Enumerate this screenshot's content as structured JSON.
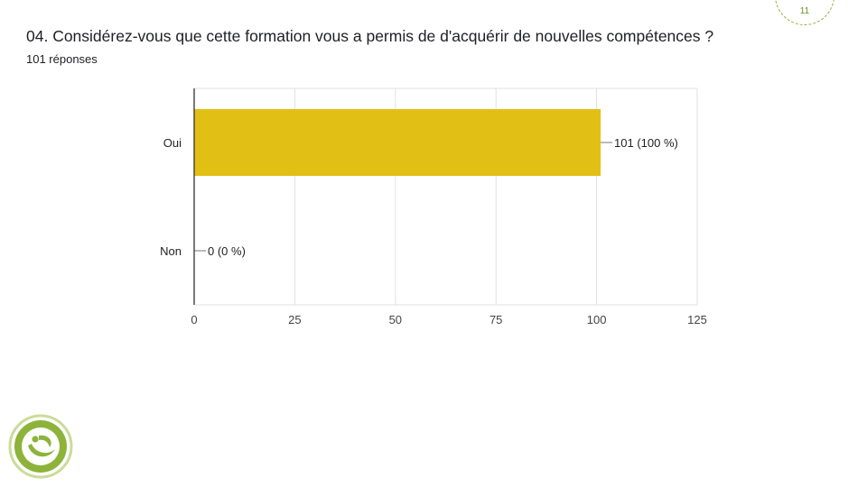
{
  "slide": {
    "question": "04. Considérez-vous que cette formation vous a permis de  d'acquérir de nouvelles compétences ?",
    "responses": "101 réponses",
    "page_number": "11",
    "accent_color": "#8db33a"
  },
  "chart_data": {
    "type": "bar",
    "orientation": "horizontal",
    "title": "",
    "xlabel": "",
    "ylabel": "",
    "categories": [
      "Oui",
      "Non"
    ],
    "values": [
      101,
      0
    ],
    "data_labels": [
      "101 (100 %)",
      "0 (0 %)"
    ],
    "xlim": [
      0,
      125
    ],
    "xticks": [
      0,
      25,
      50,
      75,
      100,
      125
    ],
    "grid": true,
    "bar_color": "#e2bf14"
  }
}
